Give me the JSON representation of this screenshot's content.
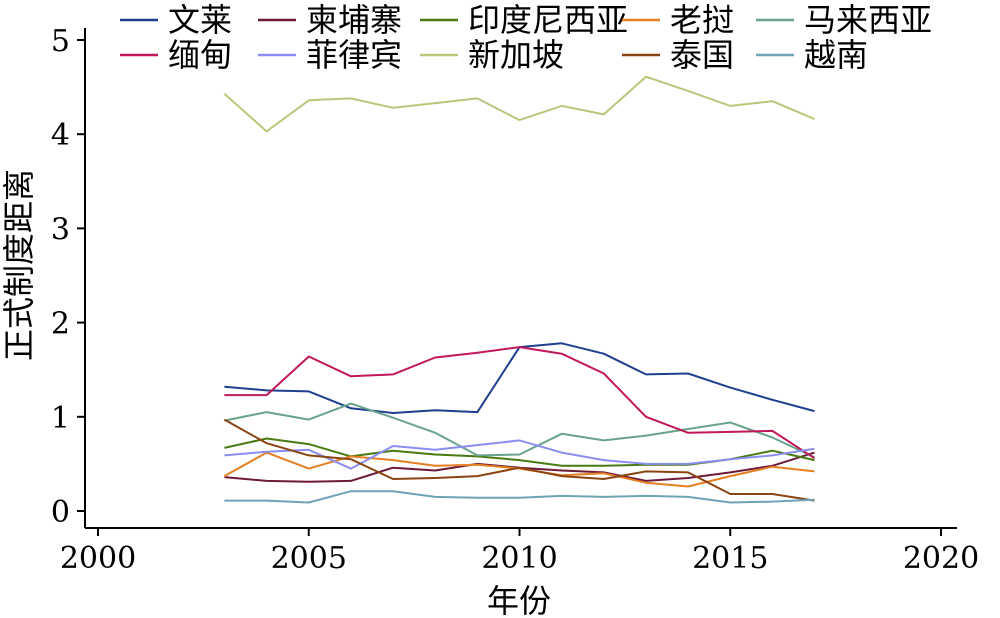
{
  "chart_data": {
    "type": "line",
    "title": "",
    "xlabel": "年份",
    "ylabel": "正式制度距离",
    "xlim": [
      2000,
      2020
    ],
    "ylim": [
      0,
      5
    ],
    "xticks": [
      2000,
      2005,
      2010,
      2015,
      2020
    ],
    "yticks": [
      0,
      1,
      2,
      3,
      4,
      5
    ],
    "grid": false,
    "legend_position": "top",
    "x": [
      2003,
      2004,
      2005,
      2006,
      2007,
      2008,
      2009,
      2010,
      2011,
      2012,
      2013,
      2014,
      2015,
      2016,
      2017
    ],
    "series": [
      {
        "name": "文莱",
        "color": "#1f3f8f",
        "values": [
          1.32,
          1.28,
          1.27,
          1.09,
          1.04,
          1.07,
          1.05,
          1.74,
          1.78,
          1.67,
          1.45,
          1.46,
          1.31,
          1.18,
          1.06
        ]
      },
      {
        "name": "柬埔寨",
        "color": "#6e1a3a",
        "values": [
          0.36,
          0.32,
          0.31,
          0.32,
          0.46,
          0.43,
          0.5,
          0.46,
          0.43,
          0.41,
          0.32,
          0.35,
          0.41,
          0.48,
          0.62
        ]
      },
      {
        "name": "印度尼西亚",
        "color": "#4a7a12",
        "values": [
          0.67,
          0.77,
          0.71,
          0.58,
          0.64,
          0.6,
          0.58,
          0.54,
          0.48,
          0.48,
          0.49,
          0.49,
          0.55,
          0.64,
          0.54
        ]
      },
      {
        "name": "老挝",
        "color": "#e67e22",
        "values": [
          0.37,
          0.62,
          0.45,
          0.58,
          0.54,
          0.48,
          0.49,
          0.45,
          0.38,
          0.4,
          0.3,
          0.26,
          0.37,
          0.47,
          0.42
        ]
      },
      {
        "name": "马来西亚",
        "color": "#6aa38c",
        "values": [
          0.96,
          1.05,
          0.97,
          1.14,
          0.99,
          0.83,
          0.59,
          0.6,
          0.82,
          0.75,
          0.8,
          0.87,
          0.94,
          0.78,
          0.57
        ]
      },
      {
        "name": "缅甸",
        "color": "#c2185b",
        "values": [
          1.23,
          1.23,
          1.64,
          1.43,
          1.45,
          1.63,
          1.68,
          1.74,
          1.67,
          1.46,
          1.0,
          0.83,
          0.84,
          0.85,
          0.56
        ]
      },
      {
        "name": "菲律宾",
        "color": "#8b8ef0",
        "values": [
          0.59,
          0.63,
          0.65,
          0.45,
          0.69,
          0.65,
          0.7,
          0.75,
          0.62,
          0.54,
          0.5,
          0.5,
          0.55,
          0.59,
          0.66
        ]
      },
      {
        "name": "新加坡",
        "color": "#b9c77a",
        "values": [
          4.43,
          4.03,
          4.36,
          4.38,
          4.28,
          4.33,
          4.38,
          4.15,
          4.3,
          4.21,
          4.61,
          4.46,
          4.3,
          4.35,
          4.16
        ]
      },
      {
        "name": "泰国",
        "color": "#8b4513",
        "values": [
          0.97,
          0.72,
          0.59,
          0.55,
          0.34,
          0.35,
          0.37,
          0.46,
          0.37,
          0.34,
          0.42,
          0.41,
          0.18,
          0.18,
          0.11
        ]
      },
      {
        "name": "越南",
        "color": "#6fa3b8",
        "values": [
          0.11,
          0.11,
          0.09,
          0.21,
          0.21,
          0.15,
          0.14,
          0.14,
          0.16,
          0.15,
          0.16,
          0.15,
          0.09,
          0.1,
          0.12
        ]
      }
    ]
  }
}
